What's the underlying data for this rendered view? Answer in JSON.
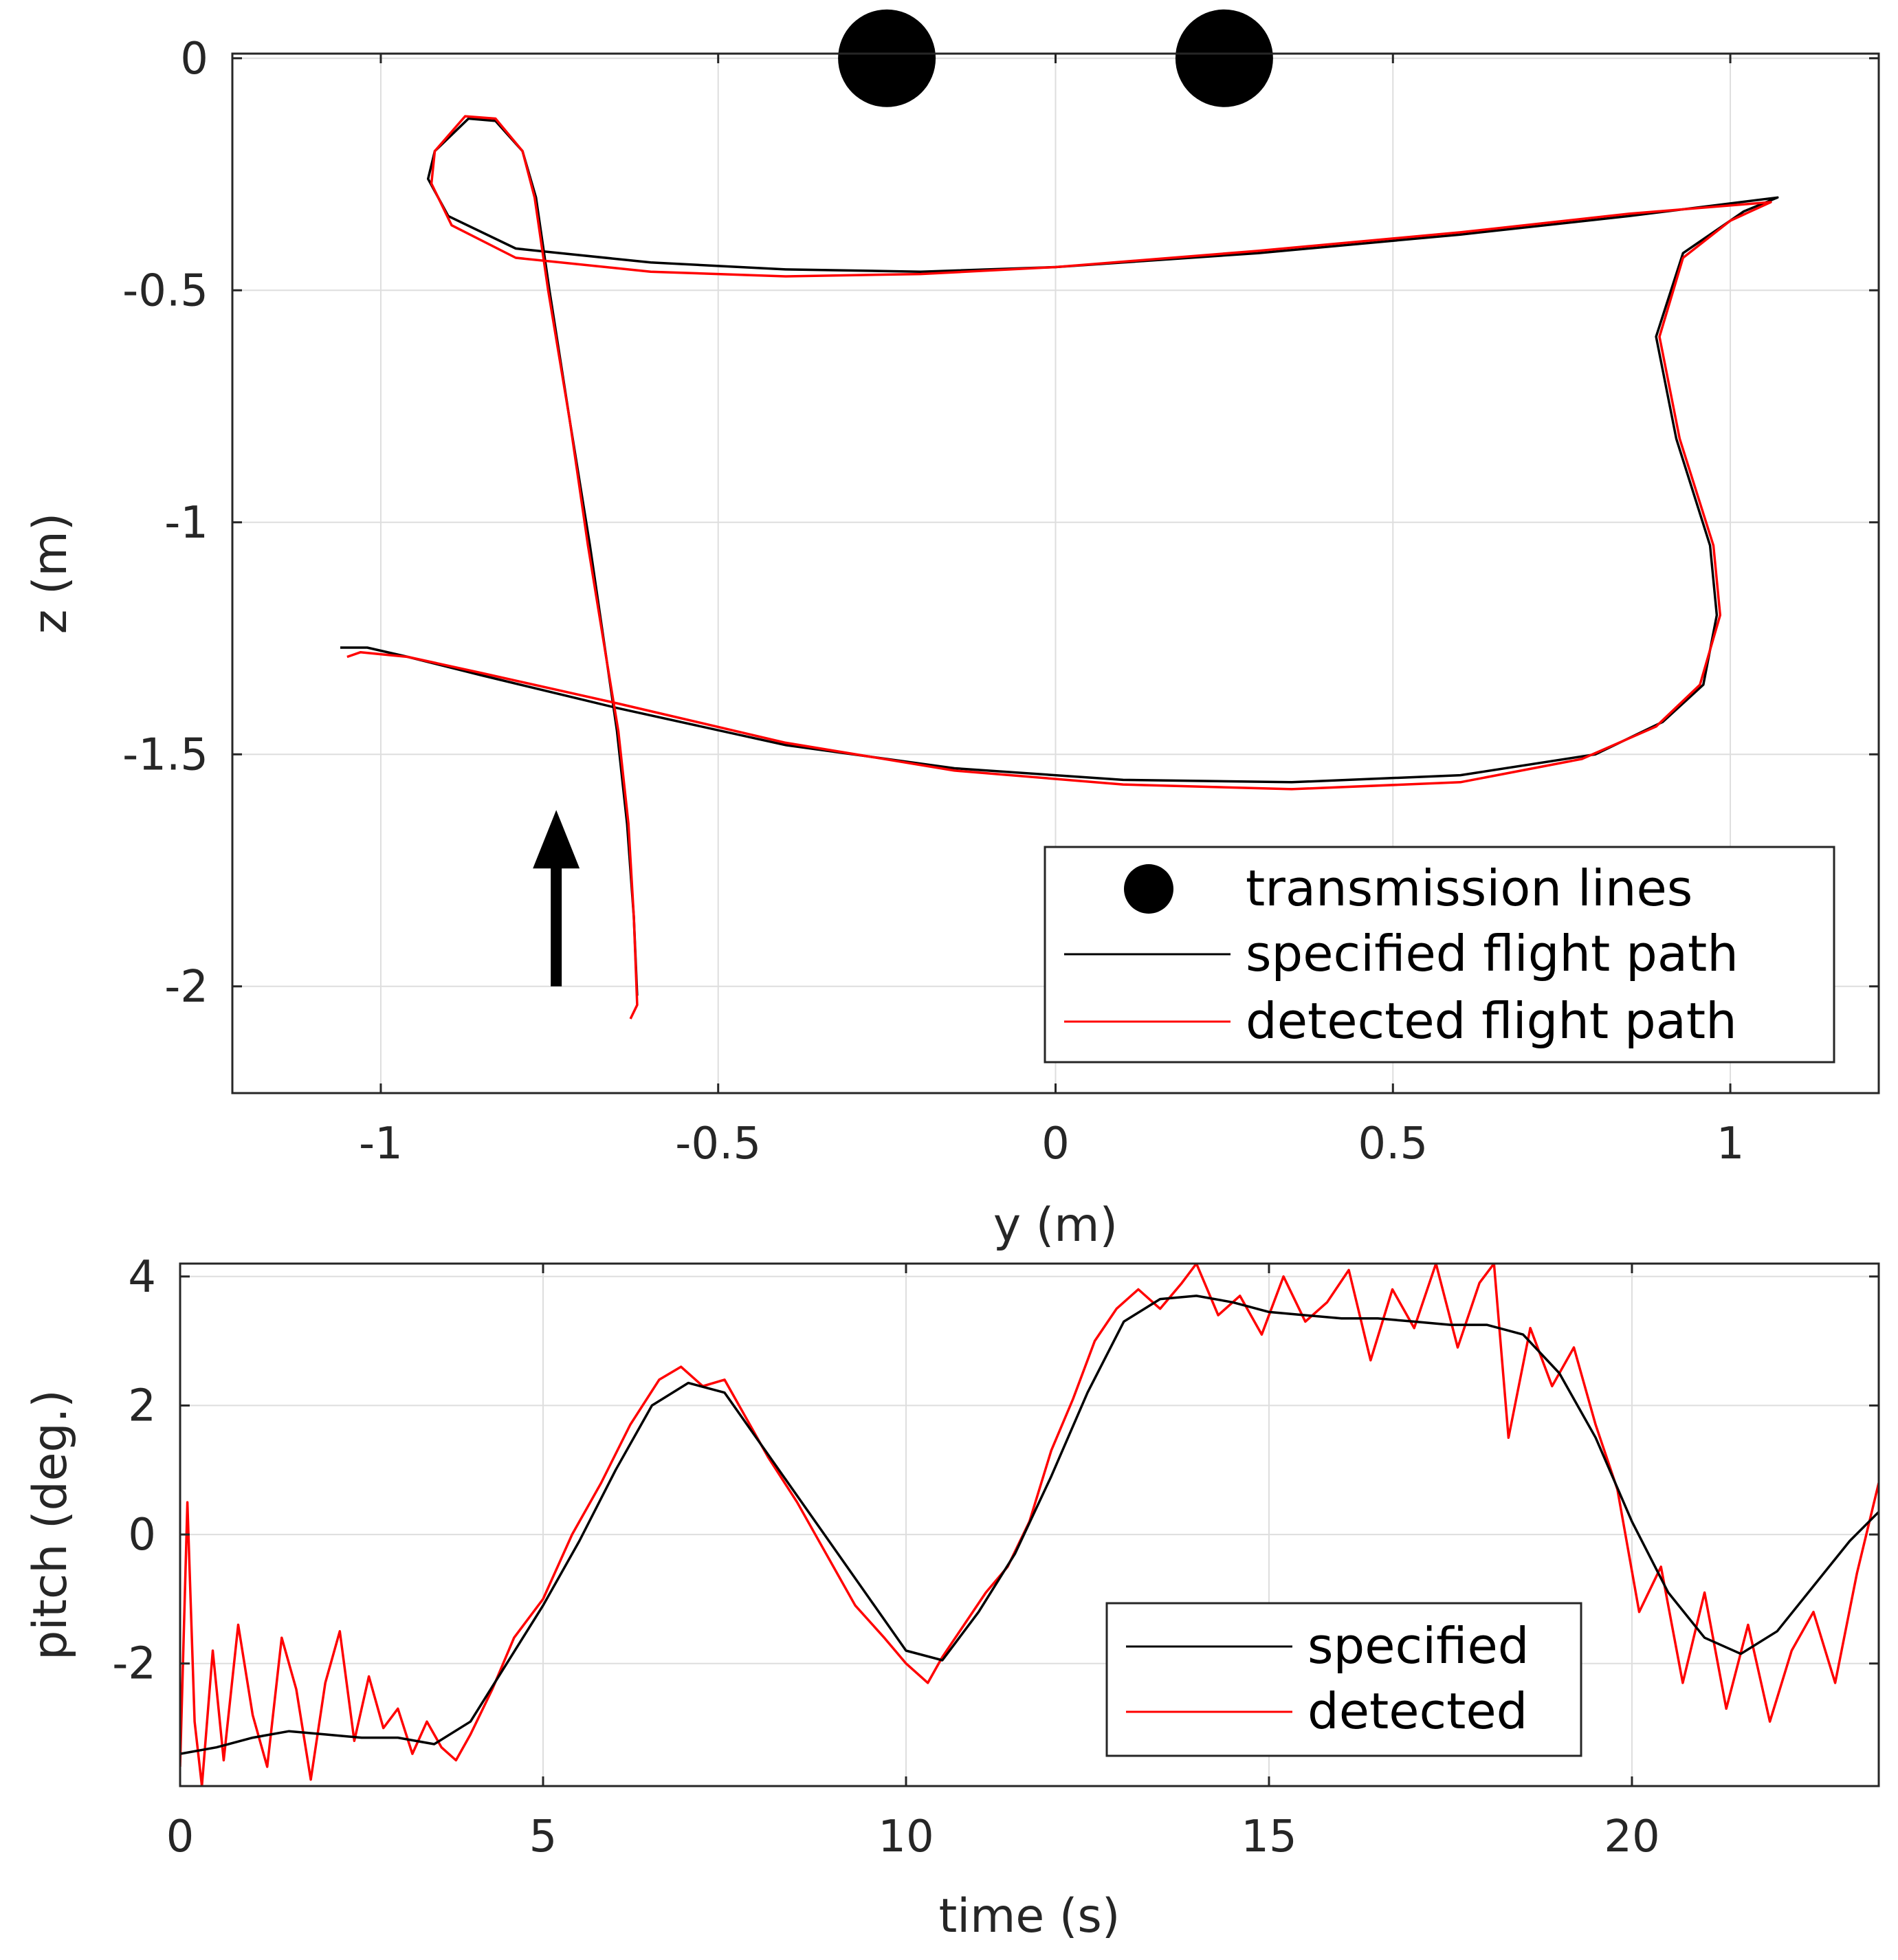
{
  "chart_data": [
    {
      "type": "line",
      "title": "",
      "xlabel": "y (m)",
      "ylabel": "z (m)",
      "xlim": [
        -1.22,
        1.22
      ],
      "ylim": [
        -2.23,
        0.01
      ],
      "grid": true,
      "xticks": [
        -1,
        -0.5,
        0,
        0.5,
        1
      ],
      "xtick_labels": [
        "-1",
        "-0.5",
        "0",
        "0.5",
        "1"
      ],
      "yticks": [
        0,
        -0.5,
        -1,
        -1.5,
        -2
      ],
      "ytick_labels": [
        "0",
        "-0.5",
        "-1",
        "-1.5",
        "-2"
      ],
      "legend_location": "bottom-right",
      "annotation": "upward arrow indicating start of flight near y = -0.75, z = -2 to -1.6",
      "arrow": {
        "x": -0.74,
        "y_from": -2.0,
        "y_to": -1.62
      },
      "series": [
        {
          "name": "transmission lines",
          "kind": "marker",
          "color": "#000000",
          "points": [
            [
              -0.25,
              0.0
            ],
            [
              0.25,
              0.0
            ]
          ]
        },
        {
          "name": "specified flight path",
          "kind": "line",
          "color": "#000000",
          "points": [
            [
              -0.62,
              -2.02
            ],
            [
              -0.625,
              -1.85
            ],
            [
              -0.635,
              -1.65
            ],
            [
              -0.65,
              -1.45
            ],
            [
              -0.665,
              -1.3
            ],
            [
              -0.69,
              -1.05
            ],
            [
              -0.72,
              -0.78
            ],
            [
              -0.75,
              -0.5
            ],
            [
              -0.77,
              -0.3
            ],
            [
              -0.79,
              -0.2
            ],
            [
              -0.83,
              -0.135
            ],
            [
              -0.87,
              -0.13
            ],
            [
              -0.92,
              -0.2
            ],
            [
              -0.93,
              -0.26
            ],
            [
              -0.9,
              -0.34
            ],
            [
              -0.8,
              -0.41
            ],
            [
              -0.6,
              -0.44
            ],
            [
              -0.4,
              -0.455
            ],
            [
              -0.2,
              -0.46
            ],
            [
              0.0,
              -0.45
            ],
            [
              0.3,
              -0.42
            ],
            [
              0.6,
              -0.38
            ],
            [
              0.85,
              -0.34
            ],
            [
              1.07,
              -0.3
            ],
            [
              1.02,
              -0.33
            ],
            [
              0.93,
              -0.42
            ],
            [
              0.89,
              -0.6
            ],
            [
              0.92,
              -0.82
            ],
            [
              0.97,
              -1.05
            ],
            [
              0.98,
              -1.2
            ],
            [
              0.96,
              -1.35
            ],
            [
              0.9,
              -1.43
            ],
            [
              0.8,
              -1.5
            ],
            [
              0.6,
              -1.545
            ],
            [
              0.35,
              -1.56
            ],
            [
              0.1,
              -1.555
            ],
            [
              -0.15,
              -1.53
            ],
            [
              -0.4,
              -1.48
            ],
            [
              -0.65,
              -1.4
            ],
            [
              -0.85,
              -1.33
            ],
            [
              -0.96,
              -1.29
            ],
            [
              -1.02,
              -1.27
            ],
            [
              -1.06,
              -1.27
            ]
          ]
        },
        {
          "name": "detected flight path",
          "kind": "line",
          "color": "#ff0000",
          "points": [
            [
              -0.63,
              -2.07
            ],
            [
              -0.62,
              -2.04
            ],
            [
              -0.625,
              -1.85
            ],
            [
              -0.633,
              -1.65
            ],
            [
              -0.648,
              -1.45
            ],
            [
              -0.665,
              -1.3
            ],
            [
              -0.693,
              -1.05
            ],
            [
              -0.72,
              -0.78
            ],
            [
              -0.752,
              -0.5
            ],
            [
              -0.772,
              -0.3
            ],
            [
              -0.79,
              -0.2
            ],
            [
              -0.83,
              -0.13
            ],
            [
              -0.875,
              -0.125
            ],
            [
              -0.92,
              -0.2
            ],
            [
              -0.925,
              -0.27
            ],
            [
              -0.895,
              -0.36
            ],
            [
              -0.8,
              -0.43
            ],
            [
              -0.6,
              -0.46
            ],
            [
              -0.4,
              -0.47
            ],
            [
              -0.2,
              -0.465
            ],
            [
              0.0,
              -0.45
            ],
            [
              0.3,
              -0.415
            ],
            [
              0.6,
              -0.375
            ],
            [
              0.85,
              -0.335
            ],
            [
              1.06,
              -0.31
            ],
            [
              1.0,
              -0.35
            ],
            [
              0.93,
              -0.43
            ],
            [
              0.895,
              -0.6
            ],
            [
              0.925,
              -0.82
            ],
            [
              0.975,
              -1.05
            ],
            [
              0.985,
              -1.2
            ],
            [
              0.955,
              -1.35
            ],
            [
              0.89,
              -1.44
            ],
            [
              0.78,
              -1.51
            ],
            [
              0.6,
              -1.56
            ],
            [
              0.35,
              -1.575
            ],
            [
              0.1,
              -1.565
            ],
            [
              -0.15,
              -1.535
            ],
            [
              -0.4,
              -1.475
            ],
            [
              -0.65,
              -1.39
            ],
            [
              -0.85,
              -1.325
            ],
            [
              -0.96,
              -1.29
            ],
            [
              -1.03,
              -1.28
            ],
            [
              -1.05,
              -1.29
            ]
          ]
        }
      ]
    },
    {
      "type": "line",
      "title": "",
      "xlabel": "time (s)",
      "ylabel": "pitch (deg.)",
      "xlim": [
        0,
        23.4
      ],
      "ylim": [
        -3.9,
        4.2
      ],
      "grid": true,
      "xticks": [
        0,
        5,
        10,
        15,
        20
      ],
      "xtick_labels": [
        "0",
        "5",
        "10",
        "15",
        "20"
      ],
      "yticks": [
        4,
        2,
        0,
        -2
      ],
      "ytick_labels": [
        "4",
        "2",
        "0",
        "-2"
      ],
      "legend_location": "bottom-center-right",
      "series": [
        {
          "name": "specified",
          "color": "#000000",
          "x": [
            0,
            0.5,
            1,
            1.5,
            2,
            2.5,
            3,
            3.5,
            4,
            4.5,
            5,
            5.5,
            6,
            6.5,
            7,
            7.5,
            8,
            8.5,
            9,
            9.5,
            10,
            10.5,
            11,
            11.5,
            12,
            12.5,
            13,
            13.5,
            14,
            14.5,
            15,
            15.5,
            16,
            16.5,
            17,
            17.5,
            18,
            18.5,
            19,
            19.5,
            20,
            20.5,
            21,
            21.5,
            22,
            22.5,
            23,
            23.4
          ],
          "y": [
            -3.4,
            -3.3,
            -3.15,
            -3.05,
            -3.1,
            -3.15,
            -3.15,
            -3.25,
            -2.9,
            -2.0,
            -1.1,
            -0.1,
            1.0,
            2.0,
            2.35,
            2.2,
            1.4,
            0.6,
            -0.2,
            -1.0,
            -1.8,
            -1.95,
            -1.2,
            -0.3,
            0.9,
            2.2,
            3.3,
            3.65,
            3.7,
            3.6,
            3.45,
            3.4,
            3.35,
            3.35,
            3.3,
            3.25,
            3.25,
            3.1,
            2.5,
            1.5,
            0.2,
            -0.9,
            -1.6,
            -1.85,
            -1.5,
            -0.8,
            -0.1,
            0.35
          ]
        },
        {
          "name": "detected",
          "color": "#ff0000",
          "x": [
            0,
            0.1,
            0.2,
            0.3,
            0.45,
            0.6,
            0.8,
            1,
            1.2,
            1.4,
            1.6,
            1.8,
            2,
            2.2,
            2.4,
            2.6,
            2.8,
            3,
            3.2,
            3.4,
            3.6,
            3.8,
            4,
            4.3,
            4.6,
            5,
            5.4,
            5.8,
            6.2,
            6.6,
            6.9,
            7.2,
            7.5,
            7.8,
            8.1,
            8.5,
            8.9,
            9.3,
            9.7,
            10,
            10.3,
            10.5,
            10.8,
            11.1,
            11.4,
            11.7,
            12,
            12.3,
            12.6,
            12.9,
            13.2,
            13.5,
            13.8,
            14,
            14.3,
            14.6,
            14.9,
            15.2,
            15.5,
            15.8,
            16.1,
            16.4,
            16.7,
            17,
            17.3,
            17.6,
            17.9,
            18.1,
            18.3,
            18.6,
            18.9,
            19.2,
            19.5,
            19.8,
            20.1,
            20.4,
            20.7,
            21,
            21.3,
            21.6,
            21.9,
            22.2,
            22.5,
            22.8,
            23.1,
            23.4
          ],
          "y": [
            -3.6,
            0.5,
            -2.9,
            -3.9,
            -1.8,
            -3.5,
            -1.4,
            -2.8,
            -3.6,
            -1.6,
            -2.4,
            -3.8,
            -2.3,
            -1.5,
            -3.2,
            -2.2,
            -3.0,
            -2.7,
            -3.4,
            -2.9,
            -3.3,
            -3.5,
            -3.1,
            -2.4,
            -1.6,
            -1.0,
            0.0,
            0.8,
            1.7,
            2.4,
            2.6,
            2.3,
            2.4,
            1.8,
            1.2,
            0.5,
            -0.3,
            -1.1,
            -1.6,
            -2.0,
            -2.3,
            -1.9,
            -1.4,
            -0.9,
            -0.5,
            0.2,
            1.3,
            2.1,
            3.0,
            3.5,
            3.8,
            3.5,
            3.9,
            4.2,
            3.4,
            3.7,
            3.1,
            4.0,
            3.3,
            3.6,
            4.1,
            2.7,
            3.8,
            3.2,
            4.2,
            2.9,
            3.9,
            4.2,
            1.5,
            3.2,
            2.3,
            2.9,
            1.7,
            0.7,
            -1.2,
            -0.5,
            -2.3,
            -0.9,
            -2.7,
            -1.4,
            -2.9,
            -1.8,
            -1.2,
            -2.3,
            -0.6,
            0.8
          ]
        }
      ]
    }
  ]
}
